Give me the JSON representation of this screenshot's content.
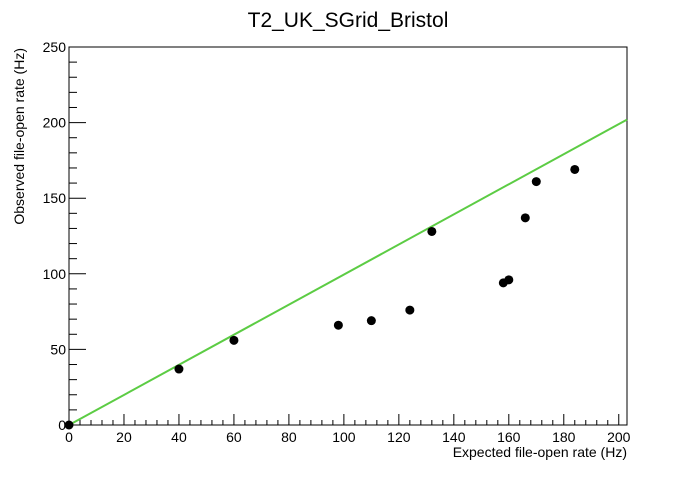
{
  "chart_data": {
    "type": "scatter",
    "title": "T2_UK_SGrid_Bristol",
    "xlabel": "Expected file-open rate (Hz)",
    "ylabel": "Observed file-open rate (Hz)",
    "xlim": [
      0,
      203
    ],
    "ylim": [
      0,
      250
    ],
    "x_ticks": [
      "0",
      "20",
      "40",
      "60",
      "80",
      "100",
      "120",
      "140",
      "160",
      "180",
      "200"
    ],
    "y_ticks": [
      "0",
      "50",
      "100",
      "150",
      "200",
      "250"
    ],
    "grid": false,
    "legend": "none",
    "series": [
      {
        "type": "scatter",
        "color": "#000000",
        "points": [
          {
            "x": 0,
            "y": 0
          },
          {
            "x": 40,
            "y": 37
          },
          {
            "x": 60,
            "y": 56
          },
          {
            "x": 98,
            "y": 66
          },
          {
            "x": 110,
            "y": 69
          },
          {
            "x": 124,
            "y": 76
          },
          {
            "x": 132,
            "y": 128
          },
          {
            "x": 158,
            "y": 94
          },
          {
            "x": 160,
            "y": 96
          },
          {
            "x": 166,
            "y": 137
          },
          {
            "x": 170,
            "y": 161
          },
          {
            "x": 184,
            "y": 169
          }
        ]
      },
      {
        "type": "line",
        "color": "#5ccc44",
        "points": [
          {
            "x": 0,
            "y": 0
          },
          {
            "x": 203,
            "y": 202
          }
        ]
      }
    ]
  }
}
